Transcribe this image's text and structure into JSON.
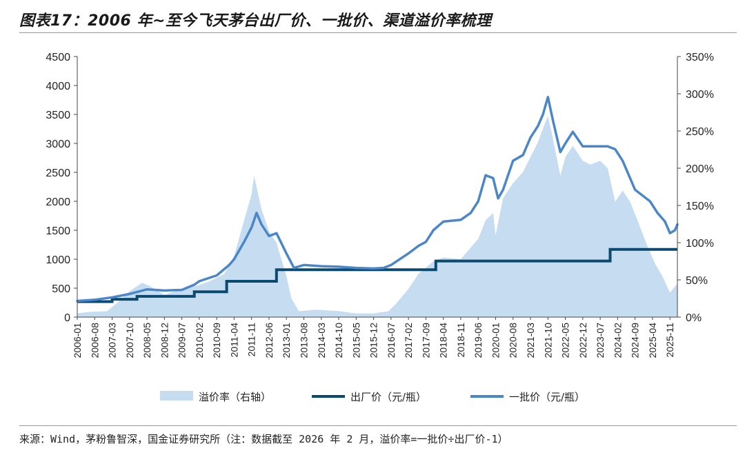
{
  "header": {
    "title": "图表17：2006 年~至今飞天茅台出厂价、一批价、渠道溢价率梳理"
  },
  "footer": {
    "source": "来源：Wind，茅粉鲁智深，国金证券研究所（注：数据截至 2026 年 2 月，溢价率=一批价÷出厂价-1）"
  },
  "colors": {
    "premium_fill": "#c6dcf0",
    "factory_line": "#0b4a6e",
    "wholesale_line": "#4a86c8",
    "axis": "#444444",
    "rule": "#7a9cc6"
  },
  "chart_data": {
    "type": "line",
    "left_axis": {
      "ylim": [
        0,
        4500
      ],
      "ticks": [
        "0",
        "500",
        "1000",
        "1500",
        "2000",
        "2500",
        "3000",
        "3500",
        "4000",
        "4500"
      ]
    },
    "right_axis": {
      "ylim": [
        0,
        350
      ],
      "ticks": [
        "0%",
        "50%",
        "100%",
        "150%",
        "200%",
        "250%",
        "300%",
        "350%"
      ]
    },
    "x_tick_labels": [
      "2006-01",
      "2006-08",
      "2007-03",
      "2007-10",
      "2008-05",
      "2008-12",
      "2009-07",
      "2010-02",
      "2010-09",
      "2011-04",
      "2011-11",
      "2012-06",
      "2013-01",
      "2013-08",
      "2014-03",
      "2014-10",
      "2015-05",
      "2015-12",
      "2016-07",
      "2017-02",
      "2017-09",
      "2018-04",
      "2018-11",
      "2019-06",
      "2020-01",
      "2020-08",
      "2021-03",
      "2021-10",
      "2022-05",
      "2022-12",
      "2023-07",
      "2024-02",
      "2024-09",
      "2025-04",
      "2025-11"
    ],
    "x_range": [
      "2006-01",
      "2026-02"
    ],
    "series": [
      {
        "name": "溢价率（右轴）",
        "axis": "right",
        "kind": "area",
        "points": [
          [
            "2006-01",
            5
          ],
          [
            "2006-06",
            7
          ],
          [
            "2007-01",
            8
          ],
          [
            "2007-06",
            22
          ],
          [
            "2007-10",
            35
          ],
          [
            "2008-03",
            46
          ],
          [
            "2008-06",
            42
          ],
          [
            "2008-12",
            30
          ],
          [
            "2009-07",
            38
          ],
          [
            "2010-01",
            42
          ],
          [
            "2010-06",
            48
          ],
          [
            "2010-12",
            58
          ],
          [
            "2011-04",
            82
          ],
          [
            "2011-08",
            130
          ],
          [
            "2011-11",
            165
          ],
          [
            "2011-12",
            190
          ],
          [
            "2012-01",
            175
          ],
          [
            "2012-03",
            145
          ],
          [
            "2012-06",
            115
          ],
          [
            "2012-09",
            100
          ],
          [
            "2013-01",
            55
          ],
          [
            "2013-03",
            25
          ],
          [
            "2013-06",
            8
          ],
          [
            "2014-01",
            10
          ],
          [
            "2014-10",
            8
          ],
          [
            "2015-05",
            5
          ],
          [
            "2015-12",
            5
          ],
          [
            "2016-06",
            8
          ],
          [
            "2016-09",
            18
          ],
          [
            "2017-02",
            38
          ],
          [
            "2017-06",
            58
          ],
          [
            "2017-12",
            75
          ],
          [
            "2018-04",
            80
          ],
          [
            "2018-11",
            78
          ],
          [
            "2019-06",
            105
          ],
          [
            "2019-09",
            130
          ],
          [
            "2019-12",
            140
          ],
          [
            "2020-01",
            110
          ],
          [
            "2020-04",
            160
          ],
          [
            "2020-08",
            180
          ],
          [
            "2020-12",
            195
          ],
          [
            "2021-03",
            215
          ],
          [
            "2021-06",
            235
          ],
          [
            "2021-09",
            262
          ],
          [
            "2021-10",
            270
          ],
          [
            "2021-12",
            240
          ],
          [
            "2022-03",
            190
          ],
          [
            "2022-05",
            215
          ],
          [
            "2022-08",
            230
          ],
          [
            "2022-12",
            210
          ],
          [
            "2023-03",
            205
          ],
          [
            "2023-07",
            210
          ],
          [
            "2023-10",
            200
          ],
          [
            "2024-01",
            155
          ],
          [
            "2024-04",
            170
          ],
          [
            "2024-07",
            155
          ],
          [
            "2024-10",
            130
          ],
          [
            "2025-02",
            95
          ],
          [
            "2025-05",
            72
          ],
          [
            "2025-08",
            55
          ],
          [
            "2025-11",
            33
          ],
          [
            "2026-02",
            45
          ]
        ]
      },
      {
        "name": "出厂价（元/瓶）",
        "axis": "left",
        "kind": "step",
        "points": [
          [
            "2006-01",
            268
          ],
          [
            "2007-03",
            308
          ],
          [
            "2008-01",
            358
          ],
          [
            "2009-12",
            438
          ],
          [
            "2011-01",
            619
          ],
          [
            "2012-09",
            819
          ],
          [
            "2018-01",
            969
          ],
          [
            "2023-11",
            1169
          ],
          [
            "2026-02",
            1169
          ]
        ]
      },
      {
        "name": "一批价（元/瓶）",
        "axis": "left",
        "kind": "line",
        "points": [
          [
            "2006-01",
            280
          ],
          [
            "2006-08",
            300
          ],
          [
            "2007-03",
            340
          ],
          [
            "2007-10",
            400
          ],
          [
            "2008-05",
            480
          ],
          [
            "2008-12",
            460
          ],
          [
            "2009-07",
            470
          ],
          [
            "2009-12",
            560
          ],
          [
            "2010-02",
            620
          ],
          [
            "2010-09",
            720
          ],
          [
            "2011-02",
            900
          ],
          [
            "2011-04",
            1000
          ],
          [
            "2011-08",
            1300
          ],
          [
            "2011-11",
            1550
          ],
          [
            "2012-01",
            1800
          ],
          [
            "2012-03",
            1600
          ],
          [
            "2012-06",
            1400
          ],
          [
            "2012-09",
            1450
          ],
          [
            "2013-01",
            1100
          ],
          [
            "2013-04",
            850
          ],
          [
            "2013-08",
            900
          ],
          [
            "2014-03",
            880
          ],
          [
            "2014-10",
            870
          ],
          [
            "2015-05",
            850
          ],
          [
            "2015-12",
            840
          ],
          [
            "2016-04",
            850
          ],
          [
            "2016-07",
            900
          ],
          [
            "2017-02",
            1100
          ],
          [
            "2017-06",
            1230
          ],
          [
            "2017-09",
            1300
          ],
          [
            "2017-12",
            1500
          ],
          [
            "2018-04",
            1650
          ],
          [
            "2018-11",
            1680
          ],
          [
            "2019-03",
            1800
          ],
          [
            "2019-06",
            2000
          ],
          [
            "2019-09",
            2450
          ],
          [
            "2019-12",
            2400
          ],
          [
            "2020-02",
            2050
          ],
          [
            "2020-04",
            2200
          ],
          [
            "2020-08",
            2700
          ],
          [
            "2020-12",
            2800
          ],
          [
            "2021-03",
            3100
          ],
          [
            "2021-06",
            3300
          ],
          [
            "2021-08",
            3500
          ],
          [
            "2021-10",
            3800
          ],
          [
            "2021-12",
            3400
          ],
          [
            "2022-03",
            2850
          ],
          [
            "2022-05",
            3000
          ],
          [
            "2022-08",
            3200
          ],
          [
            "2022-12",
            2950
          ],
          [
            "2023-03",
            2950
          ],
          [
            "2023-07",
            2950
          ],
          [
            "2023-10",
            2950
          ],
          [
            "2024-01",
            2900
          ],
          [
            "2024-04",
            2700
          ],
          [
            "2024-06",
            2500
          ],
          [
            "2024-09",
            2200
          ],
          [
            "2024-12",
            2100
          ],
          [
            "2025-03",
            2000
          ],
          [
            "2025-06",
            1800
          ],
          [
            "2025-09",
            1650
          ],
          [
            "2025-11",
            1450
          ],
          [
            "2026-01",
            1500
          ],
          [
            "2026-02",
            1600
          ]
        ]
      }
    ],
    "legend": {
      "position": "bottom"
    }
  }
}
